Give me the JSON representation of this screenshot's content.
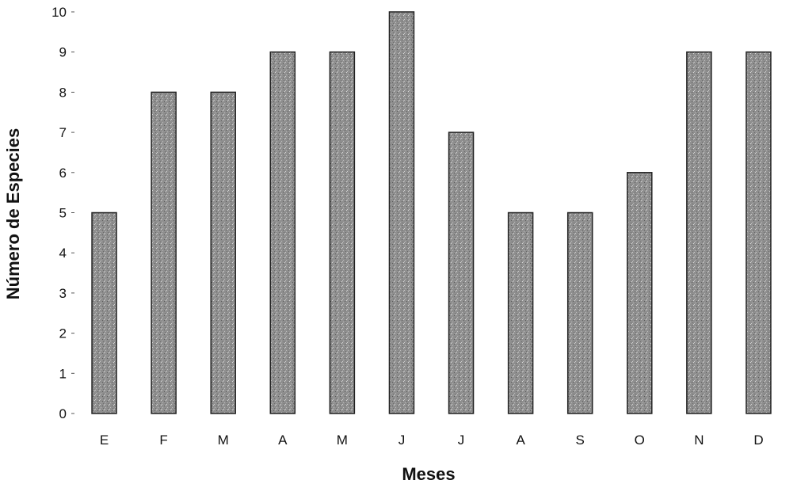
{
  "chart_data": {
    "type": "bar",
    "categories": [
      "E",
      "F",
      "M",
      "A",
      "M",
      "J",
      "J",
      "A",
      "S",
      "O",
      "N",
      "D"
    ],
    "values": [
      5,
      8,
      8,
      9,
      9,
      10,
      7,
      5,
      5,
      6,
      9,
      9
    ],
    "title": "",
    "xlabel": "Meses",
    "ylabel": "Número de Especies",
    "ylim": [
      0,
      10
    ],
    "yticks": [
      "0",
      "1",
      "2",
      "3",
      "4",
      "5",
      "6",
      "7",
      "8",
      "9",
      "10"
    ],
    "grid": false,
    "legend": "none",
    "bar_color": "#8f8f8f",
    "bar_stroke": "#222222"
  }
}
